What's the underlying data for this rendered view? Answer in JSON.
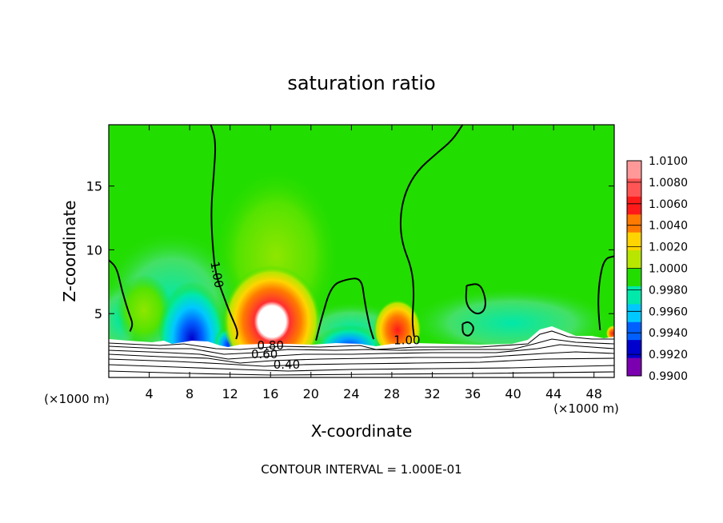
{
  "chart_data": {
    "type": "heatmap",
    "title": "saturation ratio",
    "xlabel": "X-coordinate",
    "ylabel": "Z-coordinate",
    "x_unit_label": "(×1000 m)",
    "x_ticks": [
      4,
      8,
      12,
      16,
      20,
      24,
      28,
      32,
      36,
      40,
      44,
      48
    ],
    "y_ticks": [
      5,
      10,
      15
    ],
    "xlim": [
      0,
      50
    ],
    "ylim": [
      0,
      19.8
    ],
    "footer": "CONTOUR INTERVAL = 1.000E-01",
    "colorbar": {
      "levels": [
        "1.0100",
        "1.0080",
        "1.0060",
        "1.0040",
        "1.0020",
        "1.0000",
        "0.9980",
        "0.9960",
        "0.9940",
        "0.9920",
        "0.9900"
      ],
      "colors": [
        "#ff9999",
        "#ff5555",
        "#ff1a1a",
        "#ff7a00",
        "#ffd400",
        "#b8e600",
        "#22dd00",
        "#00e8aa",
        "#00c8ff",
        "#0060ff",
        "#0000cc",
        "#7a00b0"
      ]
    },
    "contour_labels": [
      {
        "text": "1.00",
        "x": 10.3,
        "z": 8.0,
        "angle": 80
      },
      {
        "text": "1.00",
        "x": 29.5,
        "z": 2.6,
        "angle": 0
      },
      {
        "text": "0.80",
        "x": 16.0,
        "z": 2.2,
        "angle": 0
      },
      {
        "text": "0.60",
        "x": 15.4,
        "z": 1.5,
        "angle": 0
      },
      {
        "text": "0.40",
        "x": 17.6,
        "z": 0.7,
        "angle": 0
      }
    ],
    "contours": [
      {
        "name": "contour-1.00-west",
        "points": [
          [
            10.1,
            19.8
          ],
          [
            10.6,
            18.5
          ],
          [
            10.4,
            16
          ],
          [
            10.1,
            13
          ],
          [
            10.3,
            10
          ],
          [
            10.6,
            8
          ],
          [
            11.3,
            6.5
          ],
          [
            12.0,
            5.0
          ],
          [
            12.8,
            3.6
          ],
          [
            12.6,
            3.0
          ]
        ]
      },
      {
        "name": "contour-1.00-east",
        "points": [
          [
            35.0,
            19.8
          ],
          [
            34.0,
            18.6
          ],
          [
            32.5,
            17.6
          ],
          [
            30.5,
            16.2
          ],
          [
            29.3,
            14.5
          ],
          [
            28.8,
            12.5
          ],
          [
            29.0,
            10.5
          ],
          [
            30.0,
            8.5
          ],
          [
            30.2,
            6.5
          ],
          [
            30.0,
            4.5
          ],
          [
            30.2,
            3.2
          ]
        ]
      },
      {
        "name": "contour-1.00-hill",
        "points": [
          [
            20.5,
            2.9
          ],
          [
            21.0,
            4.5
          ],
          [
            22.0,
            7.2
          ],
          [
            23.5,
            7.7
          ],
          [
            25.0,
            7.8
          ],
          [
            25.3,
            6.0
          ],
          [
            25.8,
            4.0
          ],
          [
            26.2,
            3.0
          ]
        ]
      },
      {
        "name": "contour-1.00-left-edge",
        "points": [
          [
            0,
            9.2
          ],
          [
            0.8,
            8.6
          ],
          [
            1.3,
            6.8
          ],
          [
            2.0,
            5.0
          ],
          [
            2.4,
            4.2
          ],
          [
            2.1,
            3.6
          ]
        ]
      },
      {
        "name": "contour-1.00-right-edge",
        "points": [
          [
            50,
            9.5
          ],
          [
            49.0,
            9.3
          ],
          [
            48.5,
            7.5
          ],
          [
            48.4,
            5.5
          ],
          [
            48.6,
            3.7
          ]
        ]
      },
      {
        "name": "contour-1.00-loop",
        "points": [
          [
            35.4,
            7.2
          ],
          [
            36.7,
            7.4
          ],
          [
            37.3,
            6.2
          ],
          [
            37.2,
            5.2
          ],
          [
            36.3,
            4.9
          ],
          [
            35.3,
            5.7
          ],
          [
            35.4,
            7.2
          ]
        ]
      },
      {
        "name": "contour-1.00-small",
        "points": [
          [
            35.0,
            4.2
          ],
          [
            35.6,
            4.4
          ],
          [
            36.2,
            3.9
          ],
          [
            35.7,
            3.2
          ],
          [
            35.0,
            3.4
          ],
          [
            35.0,
            4.2
          ]
        ]
      }
    ]
  }
}
